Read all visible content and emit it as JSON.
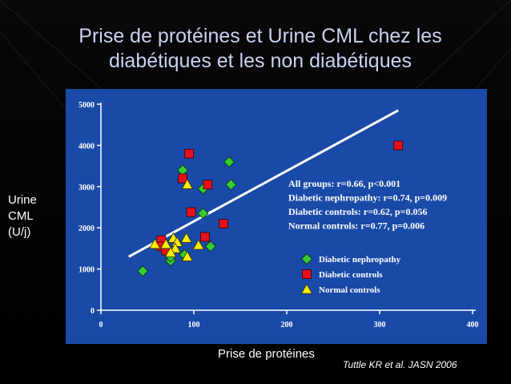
{
  "slide": {
    "title_line1": "Prise de protéines et Urine CML chez les",
    "title_line2": "diabétiques et les non diabétiques",
    "ylabel_line1": "Urine",
    "ylabel_line2": "CML",
    "ylabel_line3": "(U/j)",
    "xlabel": "Prise de protéines",
    "citation": "Tuttle KR et al. JASN 2006"
  },
  "colors": {
    "background": "#000000",
    "plot_background": "#1a4aa8",
    "title": "#c9d3f2",
    "diabetic_nephropathy": "#33cc33",
    "diabetic_controls": "#e8101a",
    "normal_controls": "#ffee00",
    "regression_line": "#ffffff"
  },
  "chart_data": {
    "type": "scatter",
    "xlim": [
      0,
      400
    ],
    "ylim": [
      0,
      5000
    ],
    "xticks": [
      0,
      100,
      200,
      300,
      400
    ],
    "yticks": [
      0,
      1000,
      2000,
      3000,
      4000,
      5000
    ],
    "grid": false,
    "legend_position": "right",
    "stats": [
      "All groups: r=0.66, p<0.001",
      "Diabetic nephropathy: r=0.74, p=0.009",
      "Diabetic controls: r=0.62, p=0.056",
      "Normal controls: r=0.77, p=0.006"
    ],
    "regression": {
      "x": [
        30,
        320
      ],
      "y": [
        1300,
        4850
      ]
    },
    "series": [
      {
        "name": "Diabetic nephropathy",
        "marker": "diamond",
        "color": "#33cc33",
        "points": [
          [
            45,
            950
          ],
          [
            75,
            1200
          ],
          [
            75,
            1300
          ],
          [
            90,
            1350
          ],
          [
            88,
            3400
          ],
          [
            110,
            2950
          ],
          [
            110,
            2350
          ],
          [
            118,
            1550
          ],
          [
            138,
            3600
          ],
          [
            140,
            3050
          ]
        ]
      },
      {
        "name": "Diabetic controls",
        "marker": "square",
        "color": "#e8101a",
        "points": [
          [
            95,
            3800
          ],
          [
            88,
            3200
          ],
          [
            115,
            3050
          ],
          [
            97,
            2380
          ],
          [
            132,
            2100
          ],
          [
            112,
            1780
          ],
          [
            65,
            1700
          ],
          [
            65,
            1550
          ],
          [
            70,
            1450
          ],
          [
            320,
            4000
          ]
        ]
      },
      {
        "name": "Normal controls",
        "marker": "triangle",
        "color": "#ffee00",
        "points": [
          [
            93,
            3050
          ],
          [
            58,
            1600
          ],
          [
            70,
            1600
          ],
          [
            78,
            1750
          ],
          [
            82,
            1650
          ],
          [
            92,
            1750
          ],
          [
            80,
            1500
          ],
          [
            105,
            1580
          ],
          [
            93,
            1300
          ],
          [
            75,
            1400
          ]
        ]
      }
    ]
  }
}
